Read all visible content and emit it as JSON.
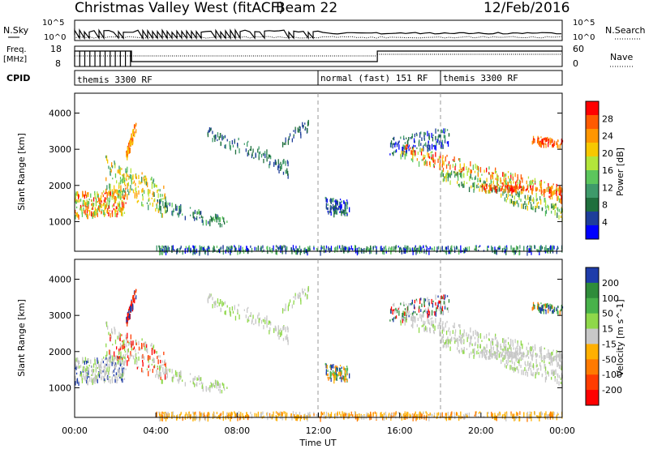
{
  "header": {
    "title": "Christmas Valley West (fitACF)",
    "beam": "Beam 22",
    "date": "12/Feb/2016"
  },
  "top_panels": {
    "nsky_label": "N.Sky",
    "nsky_ticks": [
      "10^5",
      "10^0"
    ],
    "nsearch_label": "N.Search",
    "nsearch_ticks": [
      "10^5",
      "10^0"
    ],
    "freq_label": "Freq.",
    "freq_unit": "[MHz]",
    "freq_ticks": [
      "18",
      "8"
    ],
    "nave_label": "Nave",
    "nave_ticks": [
      "60",
      "0"
    ],
    "cpid_label": "CPID",
    "cpid_segments": [
      {
        "label": "themis 3300 RF",
        "start_h": 0
      },
      {
        "label": "normal (fast) 151 RF",
        "start_h": 12
      },
      {
        "label": "themis 3300 RF",
        "start_h": 18
      }
    ]
  },
  "chart_data": [
    {
      "type": "scatter",
      "name": "power-panel",
      "ylabel": "Slant Range [km]",
      "yticks": [
        "4000",
        "3000",
        "2000",
        "1000"
      ],
      "ylim": [
        180,
        4550
      ],
      "xlim": [
        0,
        24
      ],
      "colorbar": {
        "label": "Power [dB]",
        "ticks": [
          "28",
          "24",
          "20",
          "16",
          "12",
          "8",
          "4"
        ],
        "colors": [
          "#ff0000",
          "#ff5a00",
          "#ff9600",
          "#f7c800",
          "#b3e53a",
          "#5cc65c",
          "#3e9a6a",
          "#1f6f3d",
          "#1e3e9a",
          "#0000ff"
        ]
      }
    },
    {
      "type": "scatter",
      "name": "velocity-panel",
      "ylabel": "Slant Range [km]",
      "yticks": [
        "4000",
        "3000",
        "2000",
        "1000"
      ],
      "ylim": [
        180,
        4550
      ],
      "xlim": [
        0,
        24
      ],
      "xlabel": "Time UT",
      "xticks": [
        "00:00",
        "04:00",
        "08:00",
        "12:00",
        "16:00",
        "20:00",
        "00:00"
      ],
      "colorbar": {
        "label": "Velocity [m s^-1]",
        "ticks": [
          "200",
          "100",
          "50",
          "15",
          "-15",
          "-50",
          "-100",
          "-200"
        ],
        "colors": [
          "#1e3caa",
          "#2f8c3a",
          "#48b24a",
          "#8fd84a",
          "#c8c8c8",
          "#ffb000",
          "#ff7a00",
          "#ff3c00",
          "#ff0000"
        ]
      }
    }
  ]
}
